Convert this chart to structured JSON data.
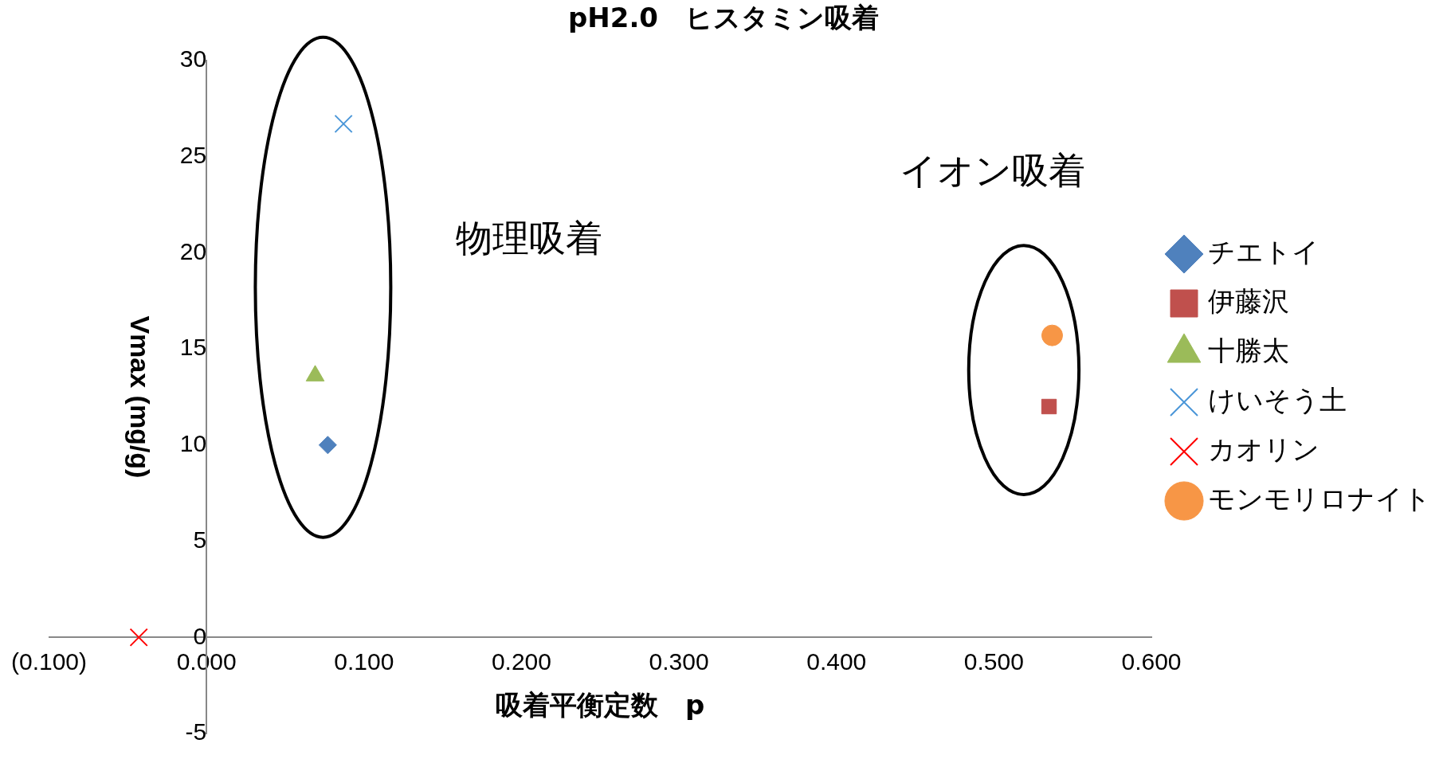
{
  "chart_data": {
    "type": "scatter",
    "title": "pH2.0　ヒスタミン吸着",
    "xlabel": "吸着平衡定数　p",
    "ylabel": "Vmax (mg/g)",
    "xlim": [
      -0.1,
      0.6
    ],
    "ylim": [
      -5,
      30
    ],
    "xticks": [
      {
        "value": -0.1,
        "label": "(0.100)"
      },
      {
        "value": 0,
        "label": "0.000"
      },
      {
        "value": 0.1,
        "label": "0.100"
      },
      {
        "value": 0.2,
        "label": "0.200"
      },
      {
        "value": 0.3,
        "label": "0.300"
      },
      {
        "value": 0.4,
        "label": "0.400"
      },
      {
        "value": 0.5,
        "label": "0.500"
      },
      {
        "value": 0.6,
        "label": "0.600"
      }
    ],
    "yticks": [
      -5,
      0,
      5,
      10,
      15,
      20,
      25,
      30
    ],
    "grid": false,
    "legend": "right",
    "annotations": [
      "物理吸着",
      "イオン吸着"
    ],
    "series": [
      {
        "name": "チエトイ",
        "color": "#4f81bd",
        "marker": "diamond",
        "x": [
          0.077
        ],
        "values": [
          10
        ]
      },
      {
        "name": "伊藤沢",
        "color": "#c0504d",
        "marker": "square",
        "x": [
          0.535
        ],
        "values": [
          12
        ]
      },
      {
        "name": "十勝太",
        "color": "#9bbb59",
        "marker": "triangle",
        "x": [
          0.069
        ],
        "values": [
          13.6
        ]
      },
      {
        "name": "けいそう土",
        "color": "#4a96d8",
        "marker": "cross",
        "x": [
          0.087
        ],
        "values": [
          26.7
        ]
      },
      {
        "name": "カオリン",
        "color": "#ff0000",
        "marker": "cross",
        "x": [
          -0.043
        ],
        "values": [
          0
        ]
      },
      {
        "name": "モンモリロナイト",
        "color": "#f79646",
        "marker": "circle",
        "x": [
          0.537
        ],
        "values": [
          15.7
        ]
      }
    ]
  }
}
